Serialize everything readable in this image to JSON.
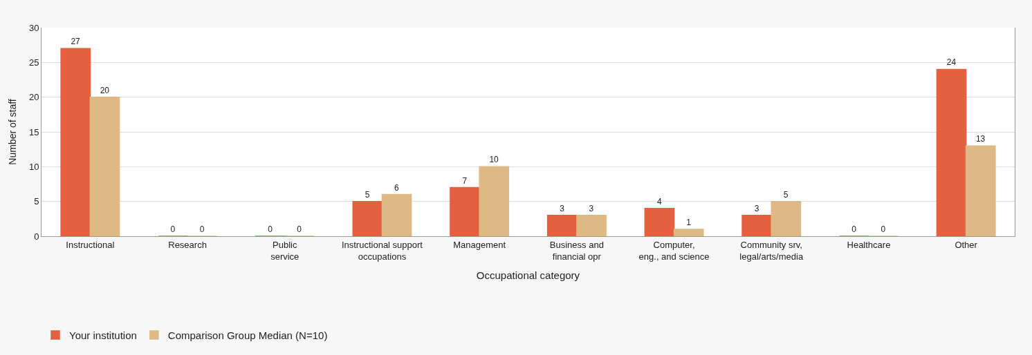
{
  "chart_data": {
    "type": "bar",
    "xlabel": "Occupational category",
    "ylabel": "Number of staff",
    "categories": [
      "Instructional",
      "Research",
      "Public\nservice",
      "Instructional support\noccupations",
      "Management",
      "Business and\nfinancial opr",
      "Computer,\neng., and science",
      "Community srv,\nlegal/arts/media",
      "Healthcare",
      "Other"
    ],
    "series": [
      {
        "name": "Your institution",
        "color": "#e4603f",
        "values": [
          27,
          0,
          0,
          5,
          7,
          3,
          4,
          3,
          0,
          24
        ]
      },
      {
        "name": "Comparison Group Median (N=10)",
        "color": "#dfb985",
        "values": [
          20,
          0,
          0,
          6,
          10,
          3,
          1,
          5,
          0,
          13
        ]
      }
    ],
    "ylim": [
      0,
      30
    ],
    "yticks": [
      0,
      5,
      10,
      15,
      20,
      25,
      30
    ],
    "grid": "y",
    "legend": "bottom left",
    "data_labels": true
  }
}
